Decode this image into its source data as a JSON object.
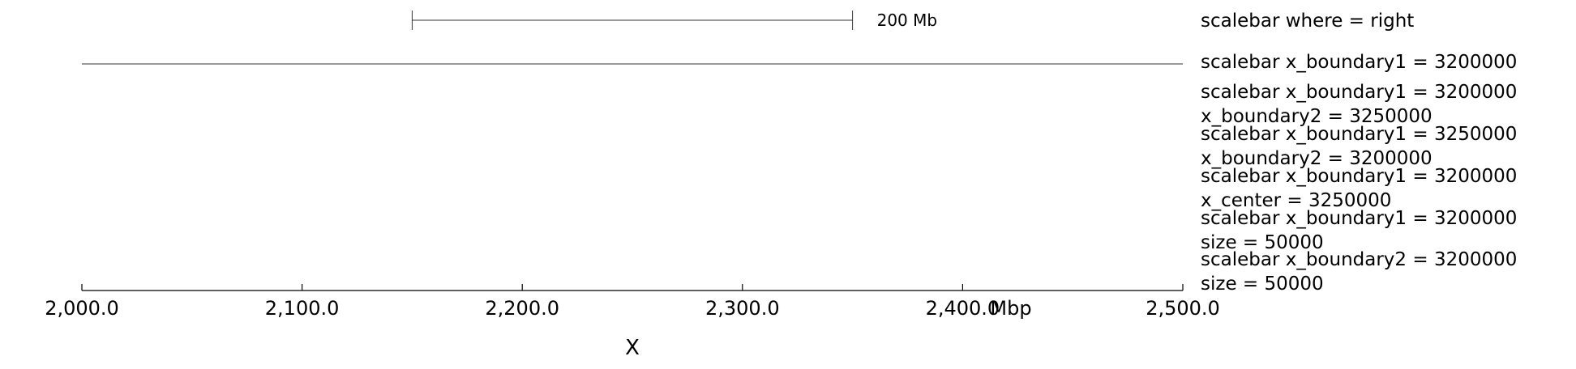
{
  "chart_data": {
    "type": "line",
    "title": "",
    "xlabel": "X",
    "ylabel": "",
    "xlim": [
      2000,
      2500
    ],
    "x_unit": "Mbp",
    "x_ticks": [
      2000,
      2100,
      2200,
      2300,
      2400,
      2500
    ],
    "x_tick_labels": [
      "2,000.0",
      "2,100.0",
      "2,200.0",
      "2,300.0",
      "2,400.0",
      "2,500.0"
    ],
    "grid": false,
    "track_colors": {
      "axis": "#000000",
      "scalebar": "#333333",
      "text": "#000000"
    },
    "tracks": [
      {
        "label_lines": [
          "scalebar where = right"
        ],
        "scalebar": {
          "x_start": 2150,
          "x_end": 2350,
          "label": "200 Mb",
          "has_end_ticks": true
        }
      },
      {
        "label_lines": [
          "scalebar x_boundary1 = 3200000"
        ],
        "scalebar": {
          "x_start": 2000,
          "x_end": 2500,
          "label": "",
          "has_end_ticks": false
        }
      },
      {
        "label_lines": [
          "scalebar x_boundary1 = 3200000",
          "x_boundary2 = 3250000"
        ]
      },
      {
        "label_lines": [
          "scalebar x_boundary1 = 3250000",
          "x_boundary2 = 3200000"
        ]
      },
      {
        "label_lines": [
          "scalebar x_boundary1 = 3200000",
          "x_center = 3250000"
        ]
      },
      {
        "label_lines": [
          "scalebar x_boundary1 = 3200000",
          "size = 50000"
        ]
      },
      {
        "label_lines": [
          "scalebar x_boundary2 = 3200000",
          "size = 50000"
        ]
      }
    ]
  }
}
